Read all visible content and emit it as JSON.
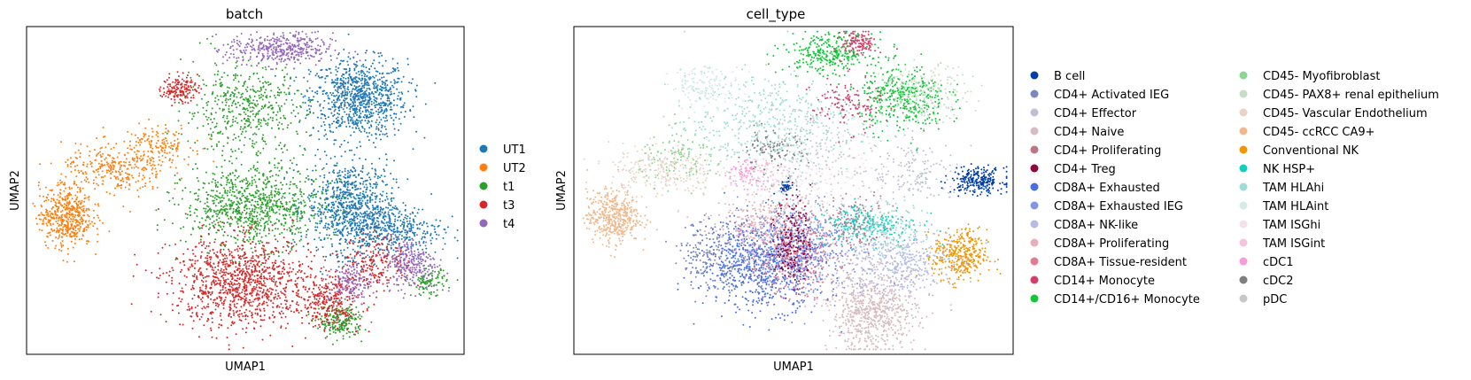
{
  "chart_data": [
    {
      "type": "scatter",
      "title": "batch",
      "xlabel": "UMAP1",
      "ylabel": "UMAP2",
      "grid": false,
      "legend_placement": "right",
      "legend": [
        {
          "name": "UT1",
          "color": "#1f77b4"
        },
        {
          "name": "UT2",
          "color": "#ff7f0e"
        },
        {
          "name": "t1",
          "color": "#2ca02c"
        },
        {
          "name": "t3",
          "color": "#d62728"
        },
        {
          "name": "t4",
          "color": "#9467bd"
        }
      ],
      "clusters": [
        {
          "series": "UT1",
          "x": 0.76,
          "y": 0.78,
          "spread": [
            0.055,
            0.06
          ],
          "n": 900
        },
        {
          "series": "UT1",
          "x": 0.74,
          "y": 0.45,
          "spread": [
            0.05,
            0.07
          ],
          "n": 800
        },
        {
          "series": "UT1",
          "x": 0.83,
          "y": 0.38,
          "spread": [
            0.06,
            0.04
          ],
          "n": 400
        },
        {
          "series": "UT2",
          "x": 0.09,
          "y": 0.42,
          "spread": [
            0.03,
            0.045
          ],
          "n": 500
        },
        {
          "series": "UT2",
          "x": 0.2,
          "y": 0.56,
          "spread": [
            0.06,
            0.04
          ],
          "n": 300
        },
        {
          "series": "UT2",
          "x": 0.3,
          "y": 0.64,
          "spread": [
            0.04,
            0.03
          ],
          "n": 150
        },
        {
          "series": "t1",
          "x": 0.52,
          "y": 0.45,
          "spread": [
            0.08,
            0.06
          ],
          "n": 900
        },
        {
          "series": "t1",
          "x": 0.5,
          "y": 0.75,
          "spread": [
            0.07,
            0.07
          ],
          "n": 500
        },
        {
          "series": "t1",
          "x": 0.72,
          "y": 0.1,
          "spread": [
            0.025,
            0.025
          ],
          "n": 200
        },
        {
          "series": "t1",
          "x": 0.92,
          "y": 0.22,
          "spread": [
            0.02,
            0.02
          ],
          "n": 100
        },
        {
          "series": "t3",
          "x": 0.49,
          "y": 0.22,
          "spread": [
            0.08,
            0.07
          ],
          "n": 1100
        },
        {
          "series": "t3",
          "x": 0.69,
          "y": 0.16,
          "spread": [
            0.04,
            0.04
          ],
          "n": 300
        },
        {
          "series": "t3",
          "x": 0.35,
          "y": 0.81,
          "spread": [
            0.02,
            0.02
          ],
          "n": 150
        },
        {
          "series": "t3",
          "x": 0.8,
          "y": 0.28,
          "spread": [
            0.04,
            0.04
          ],
          "n": 200
        },
        {
          "series": "t4",
          "x": 0.58,
          "y": 0.93,
          "spread": [
            0.06,
            0.025
          ],
          "n": 400
        },
        {
          "series": "t4",
          "x": 0.88,
          "y": 0.28,
          "spread": [
            0.03,
            0.04
          ],
          "n": 250
        },
        {
          "series": "t4",
          "x": 0.74,
          "y": 0.22,
          "spread": [
            0.025,
            0.03
          ],
          "n": 150
        }
      ]
    },
    {
      "type": "scatter",
      "title": "cell_type",
      "xlabel": "UMAP1",
      "ylabel": "UMAP2",
      "grid": false,
      "legend_placement": "right",
      "legend": [
        {
          "name": "B cell",
          "color": "#023fa5"
        },
        {
          "name": "CD4+ Activated IEG",
          "color": "#7d87b9"
        },
        {
          "name": "CD4+ Effector",
          "color": "#bec1d4"
        },
        {
          "name": "CD4+ Naive",
          "color": "#d6bcc0"
        },
        {
          "name": "CD4+ Proliferating",
          "color": "#bb7784"
        },
        {
          "name": "CD4+ Treg",
          "color": "#8e063b"
        },
        {
          "name": "CD8A+ Exhausted",
          "color": "#4a6fe3"
        },
        {
          "name": "CD8A+ Exhausted IEG",
          "color": "#8595e1"
        },
        {
          "name": "CD8A+ NK-like",
          "color": "#b5bbe3"
        },
        {
          "name": "CD8A+ Proliferating",
          "color": "#e6afb9"
        },
        {
          "name": "CD8A+ Tissue-resident",
          "color": "#e07b91"
        },
        {
          "name": "CD14+ Monocyte",
          "color": "#d33f6a"
        },
        {
          "name": "CD14+/CD16+ Monocyte",
          "color": "#11c638"
        },
        {
          "name": "CD45- Myofibroblast",
          "color": "#8dd593"
        },
        {
          "name": "CD45- PAX8+ renal epithelium",
          "color": "#c6dec7"
        },
        {
          "name": "CD45- Vascular Endothelium",
          "color": "#ead3c6"
        },
        {
          "name": "CD45- ccRCC CA9+",
          "color": "#f0b98d"
        },
        {
          "name": "Conventional NK",
          "color": "#ef9708"
        },
        {
          "name": "NK HSP+",
          "color": "#0fcfc0"
        },
        {
          "name": "TAM HLAhi",
          "color": "#9cded6"
        },
        {
          "name": "TAM HLAint",
          "color": "#d5eae7"
        },
        {
          "name": "TAM ISGhi",
          "color": "#f3e1eb"
        },
        {
          "name": "TAM ISGint",
          "color": "#f6c4e1"
        },
        {
          "name": "cDC1",
          "color": "#f79cd4"
        },
        {
          "name": "cDC2",
          "color": "#7f7f7f"
        },
        {
          "name": "pDC",
          "color": "#c7c7c7"
        }
      ],
      "clusters": [
        {
          "series": "CD45- ccRCC CA9+",
          "x": 0.09,
          "y": 0.42,
          "spread": [
            0.03,
            0.04
          ],
          "n": 450
        },
        {
          "series": "CD45- Vascular Endothelium",
          "x": 0.2,
          "y": 0.56,
          "spread": [
            0.06,
            0.04
          ],
          "n": 250
        },
        {
          "series": "CD45- Myofibroblast",
          "x": 0.25,
          "y": 0.6,
          "spread": [
            0.05,
            0.04
          ],
          "n": 120
        },
        {
          "series": "B cell",
          "x": 0.92,
          "y": 0.53,
          "spread": [
            0.03,
            0.02
          ],
          "n": 250
        },
        {
          "series": "B cell",
          "x": 0.48,
          "y": 0.51,
          "spread": [
            0.01,
            0.01
          ],
          "n": 40
        },
        {
          "series": "CD8A+ Exhausted",
          "x": 0.43,
          "y": 0.28,
          "spread": [
            0.07,
            0.07
          ],
          "n": 900
        },
        {
          "series": "CD8A+ Exhausted IEG",
          "x": 0.52,
          "y": 0.33,
          "spread": [
            0.07,
            0.07
          ],
          "n": 500
        },
        {
          "series": "CD4+ Naive",
          "x": 0.68,
          "y": 0.13,
          "spread": [
            0.05,
            0.06
          ],
          "n": 700
        },
        {
          "series": "CD8A+ NK-like",
          "x": 0.74,
          "y": 0.28,
          "spread": [
            0.06,
            0.05
          ],
          "n": 400
        },
        {
          "series": "CD8A+ Proliferating",
          "x": 0.44,
          "y": 0.4,
          "spread": [
            0.06,
            0.05
          ],
          "n": 300
        },
        {
          "series": "CD8A+ Tissue-resident",
          "x": 0.5,
          "y": 0.3,
          "spread": [
            0.05,
            0.06
          ],
          "n": 250
        },
        {
          "series": "CD4+ Treg",
          "x": 0.5,
          "y": 0.35,
          "spread": [
            0.02,
            0.07
          ],
          "n": 200
        },
        {
          "series": "CD4+ Proliferating",
          "x": 0.65,
          "y": 0.4,
          "spread": [
            0.04,
            0.04
          ],
          "n": 150
        },
        {
          "series": "Conventional NK",
          "x": 0.88,
          "y": 0.3,
          "spread": [
            0.03,
            0.04
          ],
          "n": 350
        },
        {
          "series": "NK HSP+",
          "x": 0.67,
          "y": 0.4,
          "spread": [
            0.06,
            0.03
          ],
          "n": 200
        },
        {
          "series": "TAM HLAhi",
          "x": 0.45,
          "y": 0.7,
          "spread": [
            0.1,
            0.08
          ],
          "n": 500
        },
        {
          "series": "TAM HLAhi",
          "x": 0.72,
          "y": 0.38,
          "spread": [
            0.05,
            0.04
          ],
          "n": 150
        },
        {
          "series": "CD14+/CD16+ Monocyte",
          "x": 0.75,
          "y": 0.78,
          "spread": [
            0.05,
            0.05
          ],
          "n": 400
        },
        {
          "series": "CD14+/CD16+ Monocyte",
          "x": 0.58,
          "y": 0.92,
          "spread": [
            0.05,
            0.03
          ],
          "n": 300
        },
        {
          "series": "CD14+ Monocyte",
          "x": 0.65,
          "y": 0.95,
          "spread": [
            0.02,
            0.02
          ],
          "n": 120
        },
        {
          "series": "CD14+ Monocyte",
          "x": 0.62,
          "y": 0.76,
          "spread": [
            0.04,
            0.04
          ],
          "n": 120
        },
        {
          "series": "CD45- PAX8+ renal epithelium",
          "x": 0.8,
          "y": 0.8,
          "spread": [
            0.05,
            0.04
          ],
          "n": 200
        },
        {
          "series": "TAM HLAint",
          "x": 0.3,
          "y": 0.82,
          "spread": [
            0.04,
            0.03
          ],
          "n": 150
        },
        {
          "series": "TAM ISGhi",
          "x": 0.55,
          "y": 0.55,
          "spread": [
            0.08,
            0.06
          ],
          "n": 150
        },
        {
          "series": "TAM ISGint",
          "x": 0.42,
          "y": 0.55,
          "spread": [
            0.03,
            0.03
          ],
          "n": 80
        },
        {
          "series": "cDC1",
          "x": 0.38,
          "y": 0.55,
          "spread": [
            0.02,
            0.02
          ],
          "n": 60
        },
        {
          "series": "cDC2",
          "x": 0.45,
          "y": 0.62,
          "spread": [
            0.04,
            0.03
          ],
          "n": 100
        },
        {
          "series": "pDC",
          "x": 0.55,
          "y": 0.6,
          "spread": [
            0.1,
            0.1
          ],
          "n": 200
        },
        {
          "series": "CD4+ Effector",
          "x": 0.78,
          "y": 0.55,
          "spread": [
            0.05,
            0.05
          ],
          "n": 150
        },
        {
          "series": "CD4+ Activated IEG",
          "x": 0.3,
          "y": 0.3,
          "spread": [
            0.03,
            0.05
          ],
          "n": 150
        }
      ]
    }
  ]
}
